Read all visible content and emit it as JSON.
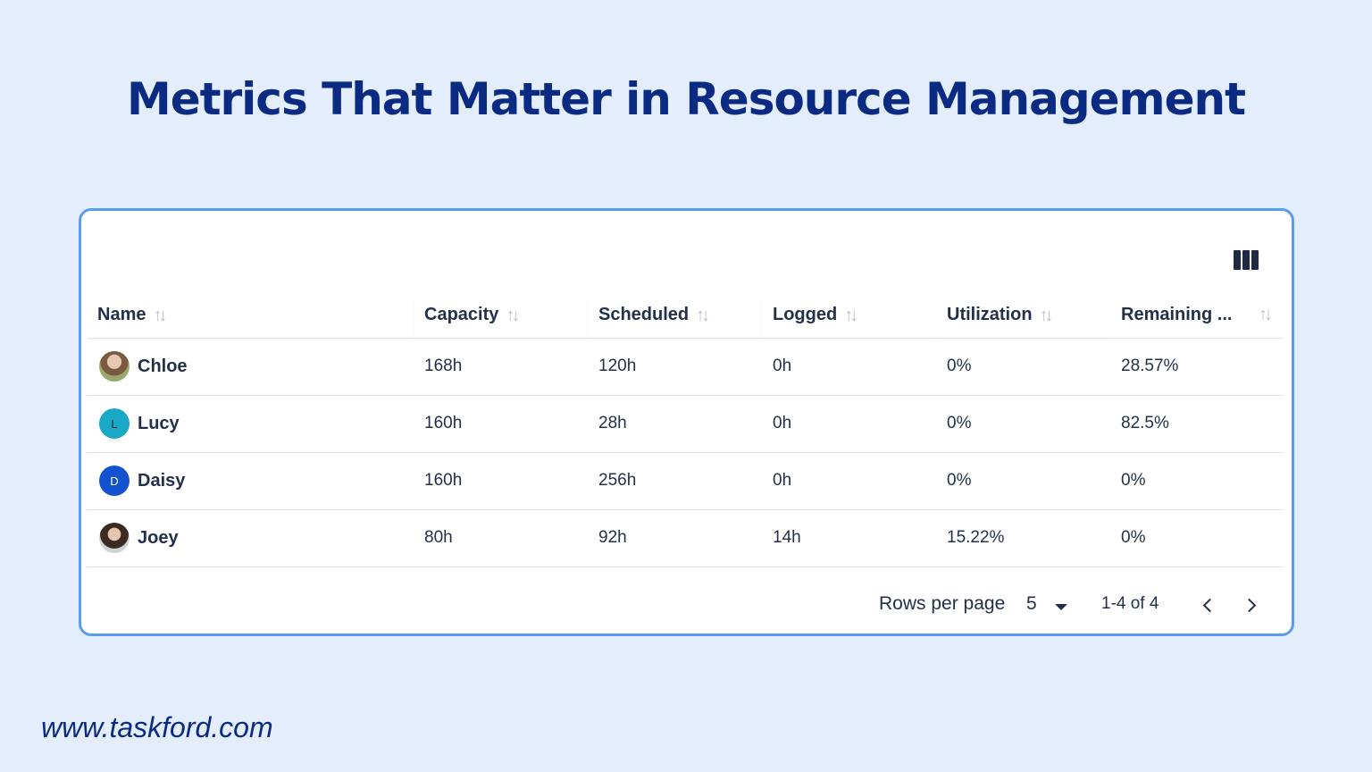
{
  "page": {
    "title": "Metrics That Matter in Resource Management",
    "url": "www.taskford.com"
  },
  "toolbar": {
    "columns_icon": "view-column-icon"
  },
  "table": {
    "columns": [
      "Name",
      "Capacity",
      "Scheduled",
      "Logged",
      "Utilization",
      "Remaining ..."
    ],
    "sort_icon": "sort-arrows-icon",
    "rows": [
      {
        "name": "Chloe",
        "avatar": "photo",
        "initial": "",
        "capacity": "168h",
        "scheduled": "120h",
        "logged": "0h",
        "utilization": "0%",
        "remaining": "28.57%"
      },
      {
        "name": "Lucy",
        "avatar": "letter",
        "initial": "L",
        "capacity": "160h",
        "scheduled": "28h",
        "logged": "0h",
        "utilization": "0%",
        "remaining": "82.5%"
      },
      {
        "name": "Daisy",
        "avatar": "letter",
        "initial": "D",
        "capacity": "160h",
        "scheduled": "256h",
        "logged": "0h",
        "utilization": "0%",
        "remaining": "0%"
      },
      {
        "name": "Joey",
        "avatar": "photo",
        "initial": "",
        "capacity": "80h",
        "scheduled": "92h",
        "logged": "14h",
        "utilization": "15.22%",
        "remaining": "0%"
      }
    ]
  },
  "pagination": {
    "rows_per_page_label": "Rows per page",
    "rows_per_page_value": "5",
    "range": "1-4 of 4"
  },
  "colors": {
    "background": "#e3edfb",
    "title": "#0b2a82",
    "card_border": "#5b9cf3",
    "avatar_lucy": "#19a8c6",
    "avatar_daisy": "#1252d1"
  }
}
